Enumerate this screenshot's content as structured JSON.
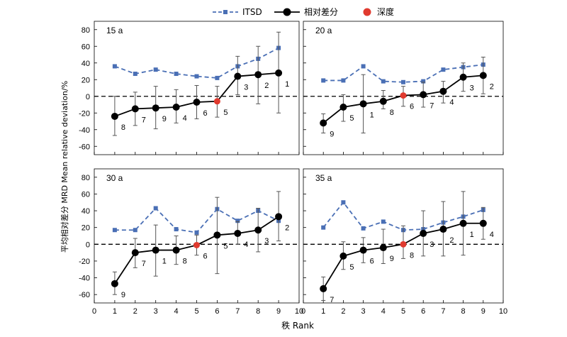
{
  "legend": {
    "position": "top-center",
    "items": [
      {
        "label": "ITSD",
        "color": "#4a6fb5",
        "marker": "square",
        "line": "dashed"
      },
      {
        "label": "相对差分",
        "color": "#000000",
        "marker": "circle",
        "line": "solid"
      },
      {
        "label": "深度",
        "color": "#e03a2f",
        "marker": "circle",
        "line": "none"
      }
    ]
  },
  "axis": {
    "xlabel": "秩 Rank",
    "ylabel": "平均相对差分 MRD Mean relative deviation/%",
    "xlim": [
      0,
      10
    ],
    "ylim": [
      -70,
      90
    ],
    "xticks": [
      0,
      1,
      2,
      3,
      4,
      5,
      6,
      7,
      8,
      9,
      10
    ],
    "yticks": [
      -60,
      -40,
      -20,
      0,
      20,
      40,
      60,
      80
    ]
  },
  "chart_data": [
    {
      "type": "line",
      "panel": "15 a",
      "x": [
        1,
        2,
        3,
        4,
        5,
        6,
        7,
        8,
        9
      ],
      "series": [
        {
          "name": "ITSD",
          "values": [
            36,
            27,
            32,
            27,
            24,
            22,
            36,
            45,
            58
          ]
        },
        {
          "name": "相对差分",
          "values": [
            -24,
            -15,
            -14,
            -13,
            -7,
            -6,
            24,
            26,
            28
          ],
          "error_low": [
            -47,
            -35,
            -39,
            -32,
            -27,
            -25,
            2,
            -9,
            -20
          ],
          "error_high": [
            0,
            5,
            12,
            8,
            13,
            12,
            48,
            60,
            77
          ]
        }
      ],
      "point_labels": [
        "8",
        "7",
        "9",
        "4",
        "6",
        "5",
        "3",
        "2",
        "1"
      ],
      "depth_point_index": 5
    },
    {
      "type": "line",
      "panel": "20 a",
      "x": [
        1,
        2,
        3,
        4,
        5,
        6,
        7,
        8,
        9
      ],
      "series": [
        {
          "name": "ITSD",
          "values": [
            19,
            19,
            36,
            18,
            17,
            18,
            32,
            35,
            38
          ]
        },
        {
          "name": "相对差分",
          "values": [
            -32,
            -13,
            -9,
            -6,
            1,
            2,
            6,
            23,
            25
          ],
          "error_low": [
            -44,
            -30,
            -44,
            -15,
            -12,
            -13,
            -8,
            6,
            3
          ],
          "error_high": [
            -21,
            2,
            26,
            7,
            12,
            17,
            18,
            40,
            47
          ]
        }
      ],
      "point_labels": [
        "9",
        "5",
        "1",
        "8",
        "6",
        "7",
        "4",
        "3",
        "2"
      ],
      "depth_point_index": 4
    },
    {
      "type": "line",
      "panel": "30 a",
      "x": [
        1,
        2,
        3,
        4,
        5,
        6,
        7,
        8,
        9
      ],
      "series": [
        {
          "name": "ITSD",
          "values": [
            17,
            17,
            43,
            18,
            14,
            42,
            28,
            40,
            28
          ]
        },
        {
          "name": "相对差分",
          "values": [
            -47,
            -10,
            -7,
            -7,
            -1,
            11,
            13,
            17,
            33
          ],
          "error_low": [
            -60,
            -28,
            -38,
            -24,
            -13,
            -35,
            0,
            -9,
            4
          ],
          "error_high": [
            -33,
            7,
            23,
            10,
            11,
            56,
            27,
            43,
            63
          ]
        }
      ],
      "point_labels": [
        "9",
        "7",
        "1",
        "8",
        "6",
        "5",
        "4",
        "3",
        "2"
      ],
      "depth_point_index": 4
    },
    {
      "type": "line",
      "panel": "35 a",
      "x": [
        1,
        2,
        3,
        4,
        5,
        6,
        7,
        8,
        9
      ],
      "series": [
        {
          "name": "ITSD",
          "values": [
            20,
            50,
            19,
            27,
            17,
            18,
            26,
            33,
            41
          ]
        },
        {
          "name": "相对差分",
          "values": [
            -53,
            -14,
            -7,
            -4,
            0,
            13,
            18,
            25,
            25
          ],
          "error_low": [
            -67,
            -30,
            -22,
            -23,
            -17,
            -14,
            -14,
            -13,
            6
          ],
          "error_high": [
            -39,
            3,
            8,
            18,
            22,
            40,
            51,
            63,
            44
          ]
        }
      ],
      "point_labels": [
        "7",
        "5",
        "6",
        "9",
        "8",
        "3",
        "2",
        "1",
        "4"
      ],
      "depth_point_index": 4
    }
  ]
}
